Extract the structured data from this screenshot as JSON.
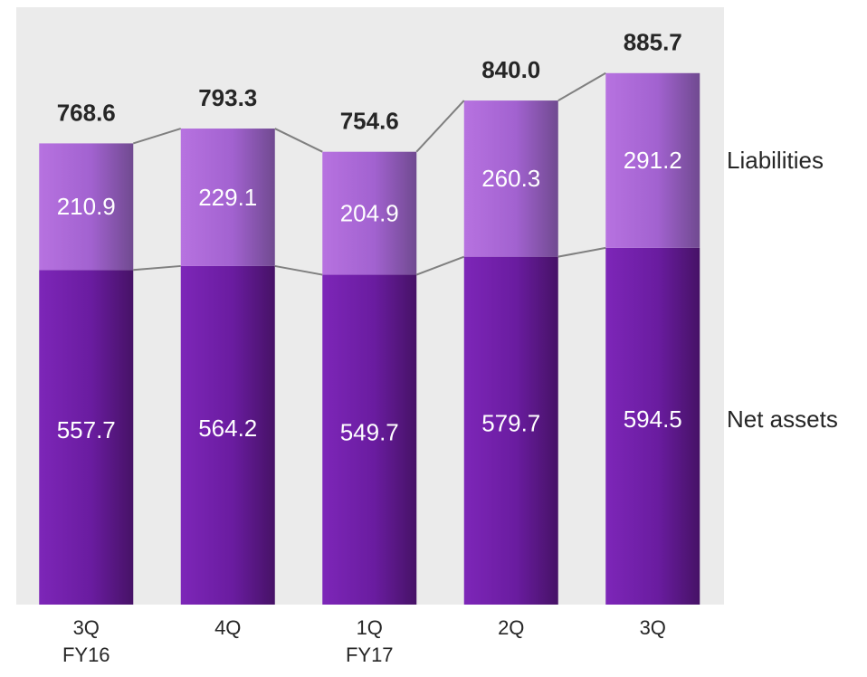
{
  "chart_data": {
    "type": "stacked-bar",
    "categories": [
      [
        "3Q",
        "FY16"
      ],
      [
        "4Q"
      ],
      [
        "1Q",
        "FY17"
      ],
      [
        "2Q"
      ],
      [
        "3Q"
      ]
    ],
    "series": [
      {
        "name": "Net assets",
        "color": "#6a1ca0",
        "values": [
          557.7,
          564.2,
          549.7,
          579.7,
          594.5
        ]
      },
      {
        "name": "Liabilities",
        "color": "#a262d0",
        "values": [
          210.9,
          229.1,
          204.9,
          260.3,
          291.2
        ]
      }
    ],
    "totals": [
      768.6,
      793.3,
      754.6,
      840,
      885.7
    ],
    "totals_labels": [
      "768.6",
      "793.3",
      "754.6",
      "840.0",
      "885.7"
    ],
    "ylim": [
      0,
      1000
    ]
  }
}
